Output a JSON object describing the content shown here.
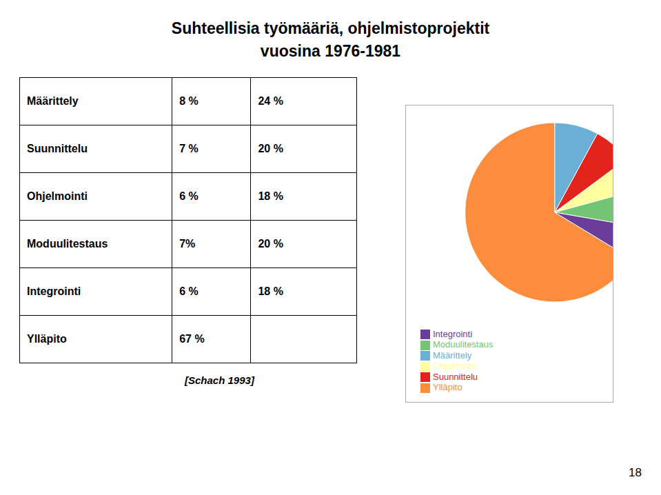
{
  "chart_data": {
    "type": "pie",
    "title": "Suhteellisia työmääriä, ohjelmistoprojektit",
    "subtitle": "vuosina 1976-1981",
    "table": [
      [
        "Määrittely",
        "8 %",
        "24 %"
      ],
      [
        "Suunnittelu",
        "7 %",
        "20 %"
      ],
      [
        "Ohjelmointi",
        "6 %",
        "18 %"
      ],
      [
        "Moduulitestaus",
        "7%",
        "20 %"
      ],
      [
        "Integrointi",
        "6 %",
        "18 %"
      ],
      [
        "Ylläpito",
        "67 %",
        null
      ]
    ],
    "annotations": [
      "[Schach 1993]",
      "18"
    ],
    "categories": [
      "Määrittely",
      "Suunnittelu",
      "Ohjelmointi",
      "Moduulitestaus",
      "Integrointi",
      "Ylläpito"
    ],
    "values": [
      8,
      7,
      6,
      7,
      6,
      67
    ],
    "colors": [
      "#6baed6",
      "#e3241c",
      "#ffffa0",
      "#74c476",
      "#6a3d9a",
      "#fd8d3c"
    ],
    "legend": "bottom"
  }
}
